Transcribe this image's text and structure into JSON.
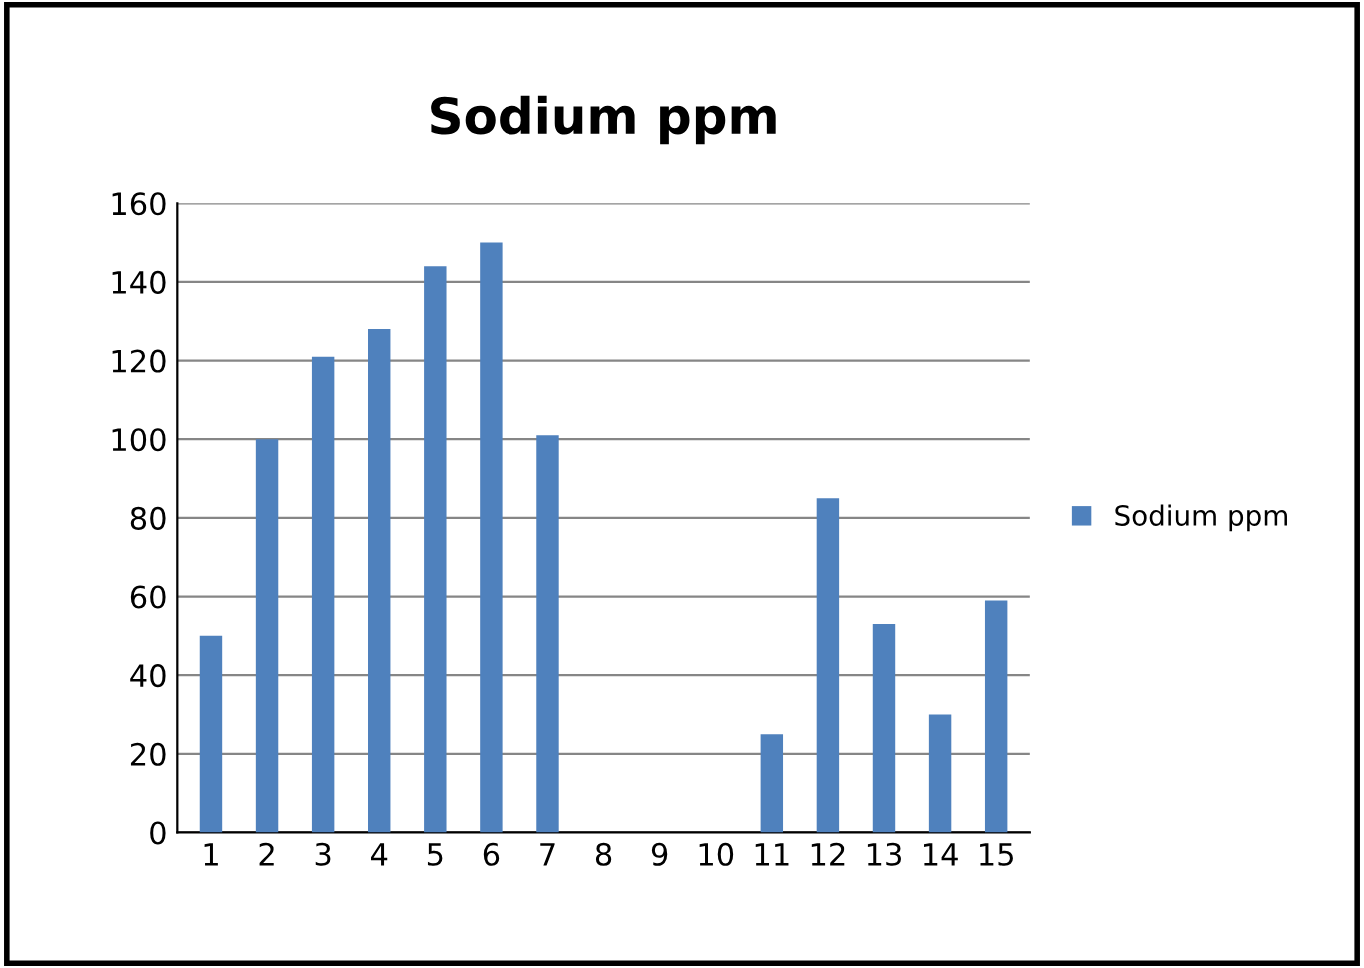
{
  "chart_data": {
    "type": "bar",
    "title": "Sodium ppm",
    "categories": [
      "1",
      "2",
      "3",
      "4",
      "5",
      "6",
      "7",
      "8",
      "9",
      "10",
      "11",
      "12",
      "13",
      "14",
      "15"
    ],
    "series": [
      {
        "name": "Sodium ppm",
        "color": "#4f81bd",
        "values": [
          50,
          100,
          121,
          128,
          144,
          150,
          101,
          0,
          0,
          0,
          25,
          85,
          53,
          30,
          59
        ]
      }
    ],
    "ylim": [
      0,
      160
    ],
    "yticks": [
      0,
      20,
      40,
      60,
      80,
      100,
      120,
      140,
      160
    ],
    "grid": "y",
    "legend": "right"
  }
}
